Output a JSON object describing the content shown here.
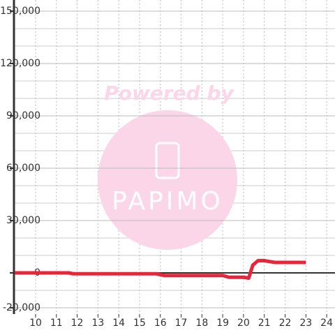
{
  "chart_data": {
    "type": "line",
    "watermark": {
      "top": "Powered by",
      "logo": "PAPIMO"
    },
    "x": [
      9,
      11.6,
      11.8,
      15.8,
      16.2,
      19.0,
      19.3,
      20.0,
      20.25,
      20.45,
      20.7,
      21.0,
      21.5,
      23.0
    ],
    "series": [
      {
        "color": "#e8253a",
        "values": [
          0,
          0,
          -500,
          -500,
          -1500,
          -1500,
          -2500,
          -2500,
          -3000,
          4500,
          7000,
          7000,
          6000,
          6000
        ]
      }
    ],
    "xlim": [
      8.96,
      24.4
    ],
    "xticks": [
      10,
      11,
      12,
      13,
      14,
      15,
      16,
      17,
      18,
      19,
      20,
      21,
      22,
      23,
      24
    ],
    "ylim": [
      -23600,
      156400
    ],
    "yticks": [
      {
        "value": -20000,
        "label": "-20,000"
      },
      0,
      {
        "value": 30000,
        "label": "30,000"
      },
      {
        "value": 60000,
        "label": "60,000"
      },
      {
        "value": 90000,
        "label": "90,000"
      },
      {
        "value": 120000,
        "label": "120,000"
      },
      {
        "value": 150000,
        "label": "150,000"
      }
    ],
    "y_minor_ticks": [
      -10000,
      10000,
      20000,
      40000,
      50000,
      70000,
      80000,
      100000,
      110000,
      130000,
      140000
    ],
    "grid": true
  }
}
